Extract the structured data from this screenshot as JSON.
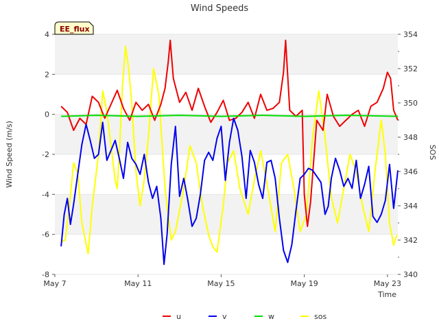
{
  "chart_data": {
    "type": "line",
    "title": "Wind Speeds",
    "xlabel": "Time",
    "ylabel": "Wind Speed (m/s)",
    "y2label": "SOS",
    "x_unit": "day of May",
    "xlim": [
      7,
      23.5
    ],
    "ylim": [
      -8,
      4
    ],
    "y2lim": [
      340,
      354
    ],
    "xticks": [
      {
        "value": 7,
        "label": "May 7"
      },
      {
        "value": 11,
        "label": "May 11"
      },
      {
        "value": 15,
        "label": "May 15"
      },
      {
        "value": 19,
        "label": "May 19"
      },
      {
        "value": 23,
        "label": "May 23"
      }
    ],
    "yticks": [
      {
        "value": 4,
        "label": "4"
      },
      {
        "value": 2,
        "label": "2"
      },
      {
        "value": 0,
        "label": "0"
      },
      {
        "value": -2,
        "label": "-2"
      },
      {
        "value": -4,
        "label": "-4"
      },
      {
        "value": -6,
        "label": "-6"
      },
      {
        "value": -8,
        "label": "-8"
      }
    ],
    "y2ticks": [
      {
        "value": 354,
        "label": "354"
      },
      {
        "value": 352,
        "label": "352"
      },
      {
        "value": 350,
        "label": "350"
      },
      {
        "value": 348,
        "label": "348"
      },
      {
        "value": 346,
        "label": "346"
      },
      {
        "value": 344,
        "label": "344"
      },
      {
        "value": 342,
        "label": "342"
      },
      {
        "value": 340,
        "label": "340"
      }
    ],
    "bands": [
      [
        2,
        4
      ],
      [
        -2,
        0
      ],
      [
        -6,
        -4
      ]
    ],
    "annotation": "EE_flux",
    "legend_position": "bottom-center",
    "series": [
      {
        "name": "u",
        "color": "#ee0000",
        "axis": "left",
        "points": [
          [
            7.3,
            0.4
          ],
          [
            7.6,
            0.1
          ],
          [
            7.9,
            -0.8
          ],
          [
            8.2,
            -0.2
          ],
          [
            8.5,
            -0.5
          ],
          [
            8.8,
            0.9
          ],
          [
            9.1,
            0.6
          ],
          [
            9.4,
            -0.2
          ],
          [
            9.7,
            0.5
          ],
          [
            10.0,
            1.2
          ],
          [
            10.3,
            0.3
          ],
          [
            10.6,
            -0.3
          ],
          [
            10.9,
            0.6
          ],
          [
            11.2,
            0.2
          ],
          [
            11.5,
            0.5
          ],
          [
            11.8,
            -0.3
          ],
          [
            12.1,
            0.5
          ],
          [
            12.3,
            1.3
          ],
          [
            12.45,
            2.6
          ],
          [
            12.55,
            3.7
          ],
          [
            12.7,
            1.8
          ],
          [
            13.0,
            0.6
          ],
          [
            13.3,
            1.1
          ],
          [
            13.6,
            0.2
          ],
          [
            13.9,
            1.3
          ],
          [
            14.2,
            0.4
          ],
          [
            14.5,
            -0.4
          ],
          [
            14.8,
            0.1
          ],
          [
            15.1,
            0.7
          ],
          [
            15.4,
            -0.3
          ],
          [
            15.7,
            -0.2
          ],
          [
            16.0,
            0.1
          ],
          [
            16.3,
            0.6
          ],
          [
            16.6,
            -0.2
          ],
          [
            16.9,
            1.0
          ],
          [
            17.2,
            0.2
          ],
          [
            17.5,
            0.3
          ],
          [
            17.8,
            0.6
          ],
          [
            18.0,
            2.1
          ],
          [
            18.1,
            3.7
          ],
          [
            18.3,
            0.2
          ],
          [
            18.6,
            -0.1
          ],
          [
            18.9,
            0.2
          ],
          [
            19.0,
            -4.0
          ],
          [
            19.15,
            -5.6
          ],
          [
            19.3,
            -4.4
          ],
          [
            19.6,
            -0.3
          ],
          [
            19.9,
            -0.8
          ],
          [
            20.1,
            1.0
          ],
          [
            20.4,
            -0.1
          ],
          [
            20.7,
            -0.6
          ],
          [
            21.0,
            -0.3
          ],
          [
            21.3,
            0.0
          ],
          [
            21.6,
            0.2
          ],
          [
            21.9,
            -0.6
          ],
          [
            22.2,
            0.4
          ],
          [
            22.5,
            0.6
          ],
          [
            22.8,
            1.3
          ],
          [
            23.0,
            2.1
          ],
          [
            23.15,
            1.8
          ],
          [
            23.3,
            0.2
          ],
          [
            23.5,
            -0.3
          ]
        ]
      },
      {
        "name": "v",
        "color": "#0000ee",
        "axis": "left",
        "points": [
          [
            7.3,
            -6.6
          ],
          [
            7.45,
            -5.0
          ],
          [
            7.6,
            -4.2
          ],
          [
            7.75,
            -5.5
          ],
          [
            7.9,
            -4.5
          ],
          [
            8.1,
            -3.0
          ],
          [
            8.3,
            -1.5
          ],
          [
            8.5,
            -0.5
          ],
          [
            8.7,
            -1.3
          ],
          [
            8.9,
            -2.2
          ],
          [
            9.1,
            -2.0
          ],
          [
            9.3,
            -0.4
          ],
          [
            9.5,
            -2.3
          ],
          [
            9.7,
            -1.8
          ],
          [
            9.9,
            -1.3
          ],
          [
            10.1,
            -2.2
          ],
          [
            10.3,
            -3.2
          ],
          [
            10.5,
            -1.4
          ],
          [
            10.7,
            -2.2
          ],
          [
            10.9,
            -2.5
          ],
          [
            11.1,
            -3.0
          ],
          [
            11.3,
            -2.0
          ],
          [
            11.5,
            -3.4
          ],
          [
            11.7,
            -4.2
          ],
          [
            11.9,
            -3.6
          ],
          [
            12.1,
            -5.2
          ],
          [
            12.25,
            -7.5
          ],
          [
            12.4,
            -6.0
          ],
          [
            12.6,
            -2.5
          ],
          [
            12.8,
            -0.6
          ],
          [
            13.0,
            -4.1
          ],
          [
            13.2,
            -3.2
          ],
          [
            13.4,
            -4.3
          ],
          [
            13.6,
            -5.6
          ],
          [
            13.8,
            -5.2
          ],
          [
            14.0,
            -4.0
          ],
          [
            14.2,
            -2.3
          ],
          [
            14.4,
            -1.9
          ],
          [
            14.6,
            -2.3
          ],
          [
            14.8,
            -1.2
          ],
          [
            15.0,
            -0.6
          ],
          [
            15.2,
            -3.3
          ],
          [
            15.4,
            -1.4
          ],
          [
            15.6,
            -0.2
          ],
          [
            15.8,
            -0.8
          ],
          [
            16.0,
            -2.1
          ],
          [
            16.2,
            -4.2
          ],
          [
            16.4,
            -1.8
          ],
          [
            16.6,
            -2.4
          ],
          [
            16.8,
            -3.5
          ],
          [
            17.0,
            -4.2
          ],
          [
            17.2,
            -2.4
          ],
          [
            17.4,
            -2.3
          ],
          [
            17.6,
            -3.2
          ],
          [
            17.8,
            -5.2
          ],
          [
            18.0,
            -6.8
          ],
          [
            18.2,
            -7.4
          ],
          [
            18.4,
            -6.5
          ],
          [
            18.6,
            -4.8
          ],
          [
            18.8,
            -3.2
          ],
          [
            19.0,
            -3.0
          ],
          [
            19.2,
            -2.7
          ],
          [
            19.4,
            -2.8
          ],
          [
            19.6,
            -3.1
          ],
          [
            19.8,
            -3.4
          ],
          [
            20.0,
            -5.0
          ],
          [
            20.15,
            -4.6
          ],
          [
            20.3,
            -3.2
          ],
          [
            20.5,
            -2.2
          ],
          [
            20.7,
            -2.8
          ],
          [
            20.9,
            -3.6
          ],
          [
            21.1,
            -3.2
          ],
          [
            21.3,
            -3.7
          ],
          [
            21.5,
            -2.3
          ],
          [
            21.7,
            -4.2
          ],
          [
            21.9,
            -3.5
          ],
          [
            22.1,
            -2.6
          ],
          [
            22.3,
            -5.1
          ],
          [
            22.5,
            -5.4
          ],
          [
            22.7,
            -5.0
          ],
          [
            22.9,
            -4.3
          ],
          [
            23.1,
            -2.5
          ],
          [
            23.3,
            -4.7
          ],
          [
            23.5,
            -2.8
          ]
        ]
      },
      {
        "name": "w",
        "color": "#00dd00",
        "axis": "left",
        "points": [
          [
            7.3,
            -0.1
          ],
          [
            9.0,
            -0.05
          ],
          [
            11.0,
            -0.1
          ],
          [
            13.0,
            -0.05
          ],
          [
            15.0,
            -0.1
          ],
          [
            17.0,
            -0.05
          ],
          [
            19.0,
            -0.1
          ],
          [
            21.0,
            -0.05
          ],
          [
            23.5,
            -0.1
          ]
        ]
      },
      {
        "name": "sos",
        "color": "#ffff00",
        "axis": "right",
        "points": [
          [
            7.3,
            341.9
          ],
          [
            7.5,
            342.0
          ],
          [
            7.7,
            344.0
          ],
          [
            7.9,
            346.5
          ],
          [
            8.1,
            345.9
          ],
          [
            8.3,
            343.0
          ],
          [
            8.6,
            341.2
          ],
          [
            8.8,
            344.0
          ],
          [
            9.1,
            347.0
          ],
          [
            9.3,
            350.7
          ],
          [
            9.5,
            349.5
          ],
          [
            9.7,
            347.5
          ],
          [
            9.9,
            345.5
          ],
          [
            10.0,
            345.0
          ],
          [
            10.1,
            347.0
          ],
          [
            10.25,
            351.0
          ],
          [
            10.4,
            353.3
          ],
          [
            10.55,
            352.0
          ],
          [
            10.7,
            350.0
          ],
          [
            10.9,
            346.0
          ],
          [
            11.1,
            344.0
          ],
          [
            11.3,
            345.5
          ],
          [
            11.5,
            348.0
          ],
          [
            11.75,
            352.0
          ],
          [
            12.0,
            350.5
          ],
          [
            12.3,
            345.0
          ],
          [
            12.6,
            342.0
          ],
          [
            12.8,
            342.5
          ],
          [
            13.2,
            345.0
          ],
          [
            13.5,
            347.5
          ],
          [
            13.8,
            346.5
          ],
          [
            14.1,
            344.0
          ],
          [
            14.4,
            342.3
          ],
          [
            14.6,
            341.6
          ],
          [
            14.8,
            341.3
          ],
          [
            15.1,
            344.0
          ],
          [
            15.3,
            346.5
          ],
          [
            15.6,
            347.2
          ],
          [
            15.9,
            345.0
          ],
          [
            16.3,
            343.5
          ],
          [
            16.6,
            345.5
          ],
          [
            16.9,
            347.2
          ],
          [
            17.2,
            345.3
          ],
          [
            17.6,
            342.5
          ],
          [
            17.9,
            346.5
          ],
          [
            18.2,
            347.0
          ],
          [
            18.5,
            345.0
          ],
          [
            18.8,
            342.5
          ],
          [
            19.1,
            343.5
          ],
          [
            19.4,
            348.0
          ],
          [
            19.7,
            350.7
          ],
          [
            20.0,
            348.0
          ],
          [
            20.3,
            344.5
          ],
          [
            20.6,
            343.0
          ],
          [
            20.9,
            345.0
          ],
          [
            21.2,
            347.0
          ],
          [
            21.5,
            346.0
          ],
          [
            21.8,
            344.0
          ],
          [
            22.1,
            342.5
          ],
          [
            22.4,
            346.0
          ],
          [
            22.7,
            349.0
          ],
          [
            22.9,
            347.0
          ],
          [
            23.1,
            343.0
          ],
          [
            23.3,
            341.7
          ],
          [
            23.45,
            342.3
          ]
        ]
      }
    ]
  }
}
